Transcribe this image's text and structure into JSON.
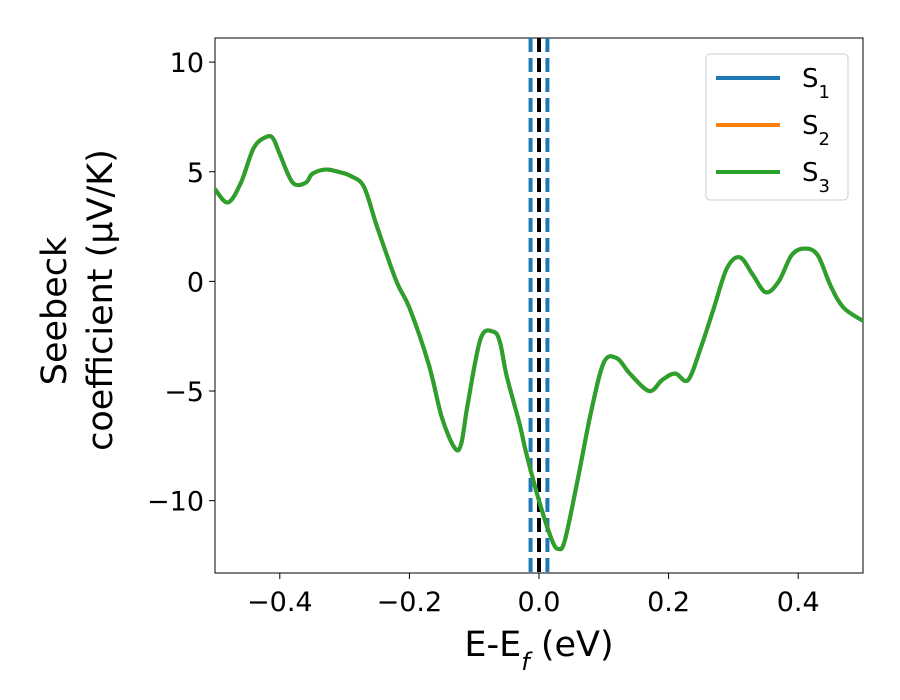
{
  "chart_data": {
    "type": "line",
    "title": "",
    "xlabel": {
      "main": "E-E",
      "sub": "f",
      "unit": " (eV)"
    },
    "ylabel": {
      "line1": "Seebeck",
      "line2": "coefficient  (μV/K)"
    },
    "xlim": [
      -0.5,
      0.5
    ],
    "ylim": [
      -13.3,
      11.1
    ],
    "xticks": [
      -0.4,
      -0.2,
      0.0,
      0.2,
      0.4
    ],
    "xtick_labels": [
      "−0.4",
      "−0.2",
      "0.0",
      "0.2",
      "0.4"
    ],
    "yticks": [
      10,
      5,
      0,
      -5,
      -10
    ],
    "ytick_labels": [
      "10",
      "5",
      "0",
      "−5",
      "−10"
    ],
    "grid": false,
    "legend_position": "top-right",
    "colors": {
      "S1": "#1f77b4",
      "S2": "#ff7f0e",
      "S3": "#2ca02c",
      "fermi": "#000000"
    },
    "legend": [
      {
        "main": "S",
        "sub": "1",
        "color": "#1f77b4"
      },
      {
        "main": "S",
        "sub": "2",
        "color": "#ff7f0e"
      },
      {
        "main": "S",
        "sub": "3",
        "color": "#2ca02c"
      }
    ],
    "vlines": [
      {
        "x": -0.013,
        "style": "dashed",
        "color": "#1f77b4"
      },
      {
        "x": 0.0,
        "style": "dashed",
        "color": "#000000"
      },
      {
        "x": 0.013,
        "style": "dashed",
        "color": "#1f77b4"
      }
    ],
    "series": [
      {
        "name": "S1",
        "x": [
          -0.5,
          -0.48,
          -0.46,
          -0.44,
          -0.42,
          -0.41,
          -0.4,
          -0.38,
          -0.36,
          -0.35,
          -0.33,
          -0.31,
          -0.29,
          -0.27,
          -0.25,
          -0.22,
          -0.2,
          -0.17,
          -0.15,
          -0.13,
          -0.12,
          -0.11,
          -0.09,
          -0.07,
          -0.06,
          -0.05,
          -0.03,
          -0.02,
          0.0,
          0.02,
          0.03,
          0.04,
          0.06,
          0.08,
          0.1,
          0.12,
          0.14,
          0.17,
          0.19,
          0.21,
          0.23,
          0.25,
          0.27,
          0.29,
          0.31,
          0.33,
          0.35,
          0.37,
          0.39,
          0.41,
          0.43,
          0.45,
          0.47,
          0.5
        ],
        "y": [
          4.2,
          3.6,
          4.5,
          6.1,
          6.6,
          6.5,
          5.8,
          4.5,
          4.5,
          4.9,
          5.1,
          5.0,
          4.8,
          4.3,
          2.5,
          0.0,
          -1.2,
          -3.8,
          -6.2,
          -7.6,
          -7.4,
          -5.6,
          -2.6,
          -2.3,
          -2.8,
          -4.3,
          -6.5,
          -7.8,
          -10.0,
          -11.8,
          -12.2,
          -11.8,
          -9.0,
          -6.0,
          -3.7,
          -3.5,
          -4.2,
          -5.0,
          -4.5,
          -4.2,
          -4.5,
          -3.0,
          -1.2,
          0.6,
          1.1,
          0.3,
          -0.5,
          0.0,
          1.2,
          1.5,
          1.2,
          -0.2,
          -1.2,
          -1.8
        ]
      },
      {
        "name": "S2",
        "x": [
          -0.5,
          -0.48,
          -0.46,
          -0.44,
          -0.42,
          -0.41,
          -0.4,
          -0.38,
          -0.36,
          -0.35,
          -0.33,
          -0.31,
          -0.29,
          -0.27,
          -0.25,
          -0.22,
          -0.2,
          -0.17,
          -0.15,
          -0.13,
          -0.12,
          -0.11,
          -0.09,
          -0.07,
          -0.06,
          -0.05,
          -0.03,
          -0.02,
          0.0,
          0.02,
          0.03,
          0.04,
          0.06,
          0.08,
          0.1,
          0.12,
          0.14,
          0.17,
          0.19,
          0.21,
          0.23,
          0.25,
          0.27,
          0.29,
          0.31,
          0.33,
          0.35,
          0.37,
          0.39,
          0.41,
          0.43,
          0.45,
          0.47,
          0.5
        ],
        "y": [
          4.2,
          3.6,
          4.5,
          6.1,
          6.6,
          6.5,
          5.8,
          4.5,
          4.5,
          4.9,
          5.1,
          5.0,
          4.8,
          4.3,
          2.5,
          0.0,
          -1.2,
          -3.8,
          -6.2,
          -7.6,
          -7.4,
          -5.6,
          -2.6,
          -2.3,
          -2.8,
          -4.3,
          -6.5,
          -7.8,
          -10.0,
          -11.8,
          -12.2,
          -11.8,
          -9.0,
          -6.0,
          -3.7,
          -3.5,
          -4.2,
          -5.0,
          -4.5,
          -4.2,
          -4.5,
          -3.0,
          -1.2,
          0.6,
          1.1,
          0.3,
          -0.5,
          0.0,
          1.2,
          1.5,
          1.2,
          -0.2,
          -1.2,
          -1.8
        ]
      },
      {
        "name": "S3",
        "x": [
          -0.5,
          -0.48,
          -0.46,
          -0.44,
          -0.42,
          -0.41,
          -0.4,
          -0.38,
          -0.36,
          -0.35,
          -0.33,
          -0.31,
          -0.29,
          -0.27,
          -0.25,
          -0.22,
          -0.2,
          -0.17,
          -0.15,
          -0.13,
          -0.12,
          -0.11,
          -0.09,
          -0.07,
          -0.06,
          -0.05,
          -0.03,
          -0.02,
          0.0,
          0.02,
          0.03,
          0.04,
          0.06,
          0.08,
          0.1,
          0.12,
          0.14,
          0.17,
          0.19,
          0.21,
          0.23,
          0.25,
          0.27,
          0.29,
          0.31,
          0.33,
          0.35,
          0.37,
          0.39,
          0.41,
          0.43,
          0.45,
          0.47,
          0.5
        ],
        "y": [
          4.2,
          3.6,
          4.5,
          6.1,
          6.6,
          6.5,
          5.8,
          4.5,
          4.5,
          4.9,
          5.1,
          5.0,
          4.8,
          4.3,
          2.5,
          0.0,
          -1.2,
          -3.8,
          -6.2,
          -7.6,
          -7.4,
          -5.6,
          -2.6,
          -2.3,
          -2.8,
          -4.3,
          -6.5,
          -7.8,
          -10.0,
          -11.8,
          -12.2,
          -11.8,
          -9.0,
          -6.0,
          -3.7,
          -3.5,
          -4.2,
          -5.0,
          -4.5,
          -4.2,
          -4.5,
          -3.0,
          -1.2,
          0.6,
          1.1,
          0.3,
          -0.5,
          0.0,
          1.2,
          1.5,
          1.2,
          -0.2,
          -1.2,
          -1.8
        ]
      }
    ]
  }
}
